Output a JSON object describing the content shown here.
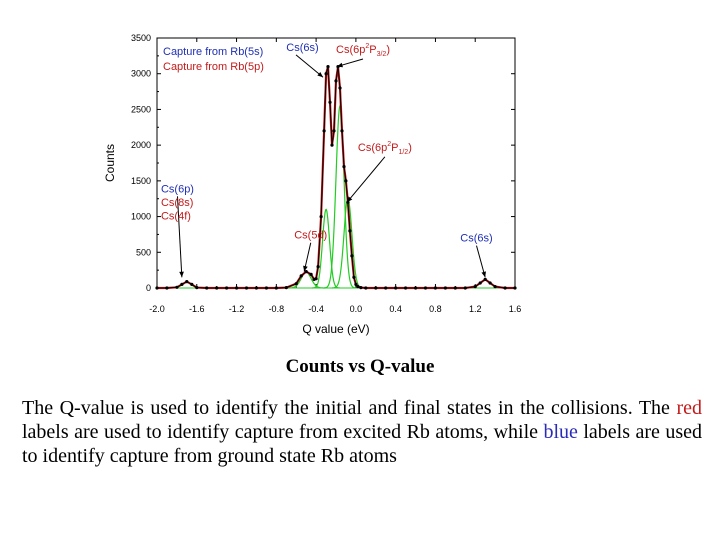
{
  "chart_data": {
    "type": "line",
    "title": "",
    "xlabel": "Q value (eV)",
    "ylabel": "Counts",
    "xlim": [
      -2.0,
      1.6
    ],
    "ylim": [
      0,
      3500
    ],
    "xticks": [
      "-2.0",
      "-1.6",
      "-1.2",
      "-0.8",
      "-0.4",
      "0.0",
      "0.4",
      "0.8",
      "1.2",
      "1.6"
    ],
    "yticks": [
      "0",
      "500",
      "1000",
      "1500",
      "2000",
      "2500",
      "3000",
      "3500"
    ],
    "legend": [
      {
        "label": "Capture from Rb(5s)",
        "color": "#1f2fb5"
      },
      {
        "label": "Capture from Rb(5p)",
        "color": "#c41a1a"
      }
    ],
    "series": [
      {
        "color": "#000000",
        "x": [
          -2.0,
          -1.9,
          -1.8,
          -1.75,
          -1.7,
          -1.65,
          -1.6,
          -1.5,
          -1.4,
          -1.3,
          -1.2,
          -1.1,
          -1.0,
          -0.9,
          -0.8,
          -0.7,
          -0.6,
          -0.55,
          -0.5,
          -0.45,
          -0.42,
          -0.4,
          -0.38,
          -0.35,
          -0.32,
          -0.3,
          -0.28,
          -0.26,
          -0.24,
          -0.22,
          -0.2,
          -0.18,
          -0.16,
          -0.14,
          -0.12,
          -0.1,
          -0.08,
          -0.06,
          -0.04,
          -0.02,
          0.0,
          0.02,
          0.05,
          0.1,
          0.2,
          0.3,
          0.4,
          0.5,
          0.6,
          0.7,
          0.8,
          0.9,
          1.0,
          1.1,
          1.2,
          1.25,
          1.3,
          1.35,
          1.4,
          1.5,
          1.6
        ],
        "y": [
          0,
          0,
          10,
          50,
          90,
          50,
          5,
          0,
          0,
          0,
          0,
          0,
          0,
          0,
          0,
          5,
          60,
          170,
          230,
          190,
          120,
          130,
          300,
          1000,
          2200,
          3000,
          3100,
          2600,
          2000,
          2200,
          2900,
          3100,
          2800,
          2200,
          1700,
          1500,
          1200,
          800,
          450,
          150,
          50,
          20,
          5,
          0,
          0,
          0,
          0,
          0,
          0,
          0,
          0,
          0,
          0,
          0,
          20,
          70,
          120,
          70,
          20,
          0,
          0
        ]
      }
    ],
    "fit_color": "#cc1f1f",
    "component_color": "#22cc22",
    "components": [
      {
        "center": -0.5,
        "sigma": 0.05,
        "amplitude": 220
      },
      {
        "center": -0.3,
        "sigma": 0.035,
        "amplitude": 1100
      },
      {
        "center": -0.16,
        "sigma": 0.04,
        "amplitude": 2550
      },
      {
        "center": -0.08,
        "sigma": 0.04,
        "amplitude": 1250
      }
    ],
    "annotations": [
      {
        "text": "Cs(6s)",
        "color": "#1f2fb5",
        "x": -0.7,
        "y": 3320,
        "arrow_to": [
          -0.33,
          2950
        ]
      },
      {
        "text": "Cs(6p",
        "sup": "2",
        "after": "P",
        "sub": "3/2",
        "close": ")",
        "color": "#c41a1a",
        "x": -0.2,
        "y": 3290,
        "arrow_to": [
          -0.19,
          3100
        ]
      },
      {
        "text": "Cs(6p",
        "sup": "2",
        "after": "P",
        "sub": "1/2",
        "close": ")",
        "color": "#c41a1a",
        "x": 0.02,
        "y": 1920,
        "arrow_to": [
          -0.09,
          1200
        ]
      },
      {
        "text": "Cs(6p)",
        "color": "#1f2fb5",
        "x": -1.96,
        "y": 1340,
        "arrow_to": [
          -1.75,
          150
        ]
      },
      {
        "text": "Cs(8s)",
        "color": "#c41a1a",
        "x": -1.96,
        "y": 1150
      },
      {
        "text": "Cs(4f)",
        "color": "#c41a1a",
        "x": -1.96,
        "y": 960
      },
      {
        "text": "Cs(5d)",
        "color": "#c41a1a",
        "x": -0.62,
        "y": 690,
        "arrow_to": [
          -0.52,
          230
        ]
      },
      {
        "text": "Cs(6s)",
        "color": "#1f2fb5",
        "x": 1.05,
        "y": 650,
        "arrow_to": [
          1.3,
          150
        ]
      }
    ]
  },
  "caption": "Counts vs Q-value",
  "description": {
    "part1": "The Q-value is used to identify the initial and final states in the collisions.  The ",
    "red_word": "red",
    "part2": " labels are used to identify capture from excited Rb atoms, while ",
    "blue_word": "blue",
    "part3": " labels are used to identify capture from ground state Rb atoms"
  }
}
